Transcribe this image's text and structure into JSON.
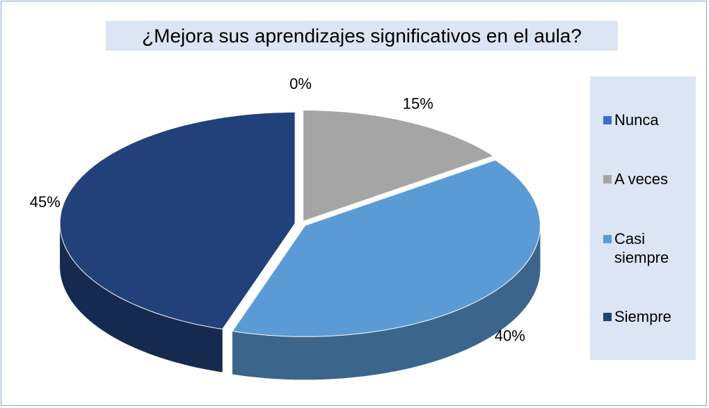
{
  "chart_data": {
    "type": "pie",
    "title": "¿Mejora sus aprendizajes significativos en el aula?",
    "categories": [
      "Nunca",
      "A veces",
      "Casi siempre",
      "Siempre"
    ],
    "values": [
      0,
      15,
      40,
      45
    ],
    "value_labels": [
      "0%",
      "15%",
      "40%",
      "45%"
    ],
    "colors": [
      "#3a6fc4",
      "#a5a5a5",
      "#5b9bd5",
      "#22407a"
    ],
    "legend": "right"
  }
}
